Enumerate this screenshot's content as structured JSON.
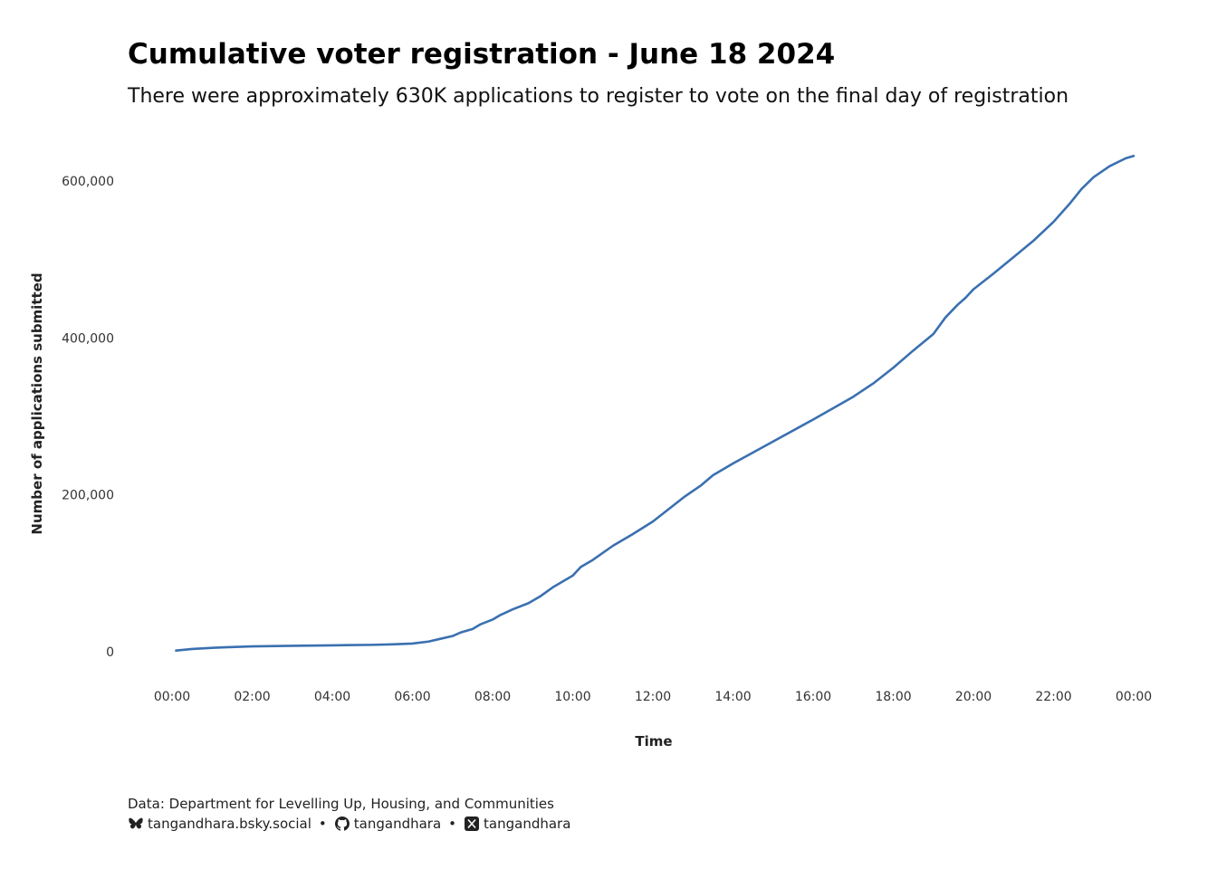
{
  "title": "Cumulative voter registration - June 18 2024",
  "subtitle": "There were approximately 630K applications to register to vote on the final day of registration",
  "caption": {
    "source": "Data: Department for Levelling Up, Housing, and Communities",
    "bluesky": "tangandhara.bsky.social",
    "github": "tangandhara",
    "x": "tangandhara",
    "separator": "•"
  },
  "chart_data": {
    "type": "line",
    "title": "Cumulative voter registration - June 18 2024",
    "subtitle": "There were approximately 630K applications to register to vote on the final day of registration",
    "xlabel": "Time",
    "ylabel": "Number of applications submitted",
    "x_ticks": [
      0,
      2,
      4,
      6,
      8,
      10,
      12,
      14,
      16,
      18,
      20,
      22,
      24
    ],
    "x_tick_labels": [
      "00:00",
      "02:00",
      "04:00",
      "06:00",
      "08:00",
      "10:00",
      "12:00",
      "14:00",
      "16:00",
      "18:00",
      "20:00",
      "22:00",
      "00:00"
    ],
    "y_ticks": [
      0,
      200000,
      400000,
      600000
    ],
    "y_tick_labels": [
      "0",
      "200,000",
      "400,000",
      "600,000"
    ],
    "xlim": [
      0,
      24
    ],
    "ylim": [
      0,
      630000
    ],
    "grid": false,
    "line_color": "#3a70b0",
    "series": [
      {
        "x": [
          0.1,
          0.5,
          1.0,
          1.5,
          2.0,
          3.0,
          4.0,
          5.0,
          5.5,
          6.0,
          6.4,
          6.7,
          7.0,
          7.2,
          7.5,
          7.7,
          8.0,
          8.2,
          8.5,
          8.9,
          9.2,
          9.5,
          10.0,
          10.2,
          10.5,
          11.0,
          11.5,
          12.0,
          12.4,
          12.8,
          13.2,
          13.5,
          14.0,
          14.5,
          15.0,
          16.0,
          17.0,
          17.5,
          18.0,
          18.5,
          19.0,
          19.3,
          19.6,
          19.8,
          20.0,
          20.5,
          21.0,
          21.5,
          22.0,
          22.4,
          22.7,
          23.0,
          23.4,
          23.8,
          24.0
        ],
        "y": [
          1500,
          3500,
          5000,
          6000,
          6800,
          7600,
          8200,
          8800,
          9500,
          10500,
          13000,
          16500,
          20000,
          24500,
          29000,
          35000,
          41000,
          47000,
          54000,
          62000,
          71000,
          82000,
          97000,
          108000,
          117000,
          135000,
          150000,
          166000,
          182000,
          198000,
          212000,
          225000,
          240000,
          254000,
          268000,
          296000,
          325000,
          342000,
          362000,
          384000,
          405000,
          426000,
          442000,
          451000,
          462000,
          482000,
          503000,
          524000,
          548000,
          571000,
          590000,
          605000,
          619000,
          629000,
          632000
        ]
      }
    ]
  }
}
